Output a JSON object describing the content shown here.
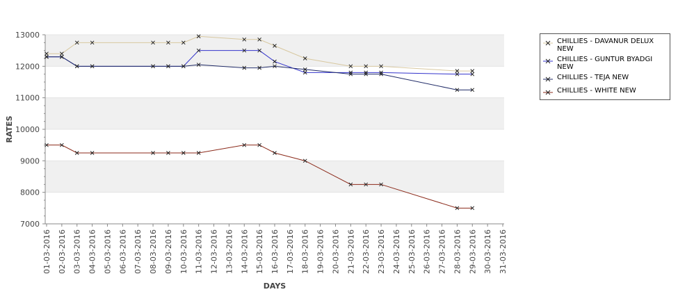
{
  "chart_data": {
    "type": "line",
    "title": "",
    "xlabel": "DAYS",
    "ylabel": "RATES",
    "ylim": [
      7000,
      13000
    ],
    "yticks": [
      7000,
      8000,
      9000,
      10000,
      11000,
      12000,
      13000
    ],
    "grid": "alternating horizontal bands",
    "legend_position": "right",
    "categories": [
      "01-03-2016",
      "02-03-2016",
      "03-03-2016",
      "04-03-2016",
      "05-03-2016",
      "06-03-2016",
      "07-03-2016",
      "08-03-2016",
      "09-03-2016",
      "10-03-2016",
      "11-03-2016",
      "12-03-2016",
      "13-03-2016",
      "14-03-2016",
      "15-03-2016",
      "16-03-2016",
      "17-03-2016",
      "18-03-2016",
      "19-03-2016",
      "20-03-2016",
      "21-03-2016",
      "22-03-2016",
      "23-03-2016",
      "24-03-2016",
      "25-03-2016",
      "26-03-2016",
      "27-03-2016",
      "28-03-2016",
      "29-03-2016",
      "30-03-2016",
      "31-03-2016"
    ],
    "series": [
      {
        "name": "CHILLIES - DAVANUR DELUX NEW",
        "color": "#d8c8a0",
        "points": [
          [
            "01-03-2016",
            12400
          ],
          [
            "02-03-2016",
            12400
          ],
          [
            "03-03-2016",
            12750
          ],
          [
            "04-03-2016",
            12750
          ],
          [
            "08-03-2016",
            12750
          ],
          [
            "09-03-2016",
            12750
          ],
          [
            "10-03-2016",
            12750
          ],
          [
            "11-03-2016",
            12950
          ],
          [
            "14-03-2016",
            12850
          ],
          [
            "15-03-2016",
            12850
          ],
          [
            "16-03-2016",
            12650
          ],
          [
            "18-03-2016",
            12250
          ],
          [
            "21-03-2016",
            12000
          ],
          [
            "22-03-2016",
            12000
          ],
          [
            "23-03-2016",
            12000
          ],
          [
            "28-03-2016",
            11850
          ],
          [
            "29-03-2016",
            11850
          ]
        ]
      },
      {
        "name": "CHILLIES - GUNTUR BYADGI NEW",
        "color": "#3333cc",
        "points": [
          [
            "01-03-2016",
            12300
          ],
          [
            "02-03-2016",
            12300
          ],
          [
            "03-03-2016",
            12000
          ],
          [
            "04-03-2016",
            12000
          ],
          [
            "08-03-2016",
            12000
          ],
          [
            "09-03-2016",
            12000
          ],
          [
            "10-03-2016",
            12000
          ],
          [
            "11-03-2016",
            12500
          ],
          [
            "14-03-2016",
            12500
          ],
          [
            "15-03-2016",
            12500
          ],
          [
            "16-03-2016",
            12150
          ],
          [
            "18-03-2016",
            11800
          ],
          [
            "21-03-2016",
            11800
          ],
          [
            "22-03-2016",
            11800
          ],
          [
            "23-03-2016",
            11800
          ],
          [
            "28-03-2016",
            11750
          ],
          [
            "29-03-2016",
            11750
          ]
        ]
      },
      {
        "name": "CHILLIES - TEJA NEW",
        "color": "#1f2a66",
        "points": [
          [
            "01-03-2016",
            12300
          ],
          [
            "02-03-2016",
            12300
          ],
          [
            "03-03-2016",
            12000
          ],
          [
            "04-03-2016",
            12000
          ],
          [
            "08-03-2016",
            12000
          ],
          [
            "09-03-2016",
            12000
          ],
          [
            "10-03-2016",
            12000
          ],
          [
            "11-03-2016",
            12050
          ],
          [
            "14-03-2016",
            11950
          ],
          [
            "15-03-2016",
            11950
          ],
          [
            "16-03-2016",
            12000
          ],
          [
            "18-03-2016",
            11900
          ],
          [
            "21-03-2016",
            11750
          ],
          [
            "22-03-2016",
            11750
          ],
          [
            "23-03-2016",
            11750
          ],
          [
            "28-03-2016",
            11250
          ],
          [
            "29-03-2016",
            11250
          ]
        ]
      },
      {
        "name": "CHILLIES - WHITE NEW",
        "color": "#8b2a1a",
        "points": [
          [
            "01-03-2016",
            9500
          ],
          [
            "02-03-2016",
            9500
          ],
          [
            "03-03-2016",
            9250
          ],
          [
            "04-03-2016",
            9250
          ],
          [
            "08-03-2016",
            9250
          ],
          [
            "09-03-2016",
            9250
          ],
          [
            "10-03-2016",
            9250
          ],
          [
            "11-03-2016",
            9250
          ],
          [
            "14-03-2016",
            9500
          ],
          [
            "15-03-2016",
            9500
          ],
          [
            "16-03-2016",
            9250
          ],
          [
            "18-03-2016",
            9000
          ],
          [
            "21-03-2016",
            8250
          ],
          [
            "22-03-2016",
            8250
          ],
          [
            "23-03-2016",
            8250
          ],
          [
            "28-03-2016",
            7500
          ],
          [
            "29-03-2016",
            7500
          ]
        ]
      }
    ]
  }
}
